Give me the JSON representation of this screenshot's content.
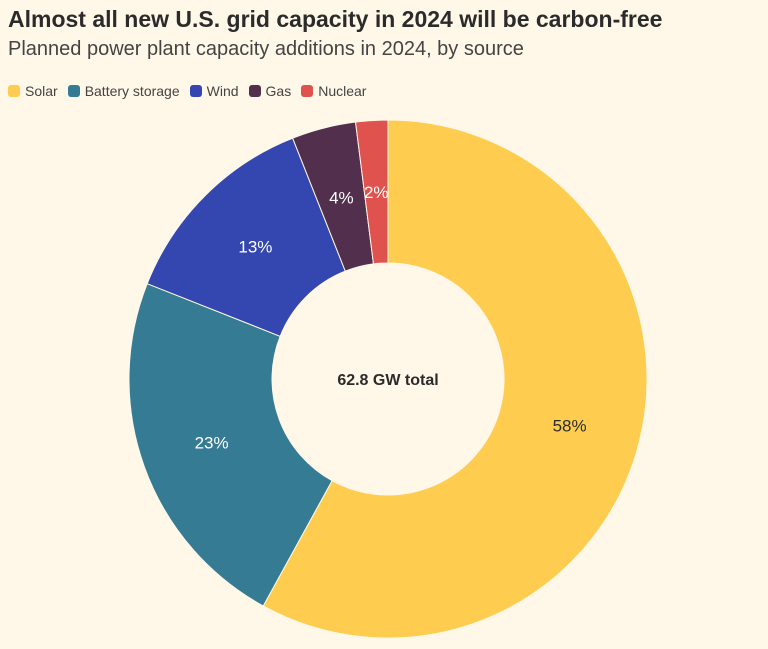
{
  "chart_data": {
    "type": "pie",
    "title": "Almost all new U.S. grid capacity in 2024 will be carbon-free",
    "subtitle": "Planned power plant capacity additions in 2024, by source",
    "center_label": "62.8 GW total",
    "slices": [
      {
        "name": "Solar",
        "value": 58,
        "label": "58%",
        "color": "#fecd4f"
      },
      {
        "name": "Battery storage",
        "value": 23,
        "label": "23%",
        "color": "#357b93"
      },
      {
        "name": "Wind",
        "value": 13,
        "label": "13%",
        "color": "#3447b0"
      },
      {
        "name": "Gas",
        "value": 4,
        "label": "4%",
        "color": "#532f4e"
      },
      {
        "name": "Nuclear",
        "value": 2,
        "label": "2%",
        "color": "#e0524d"
      }
    ],
    "legend_position": "top-left",
    "donut": true
  }
}
